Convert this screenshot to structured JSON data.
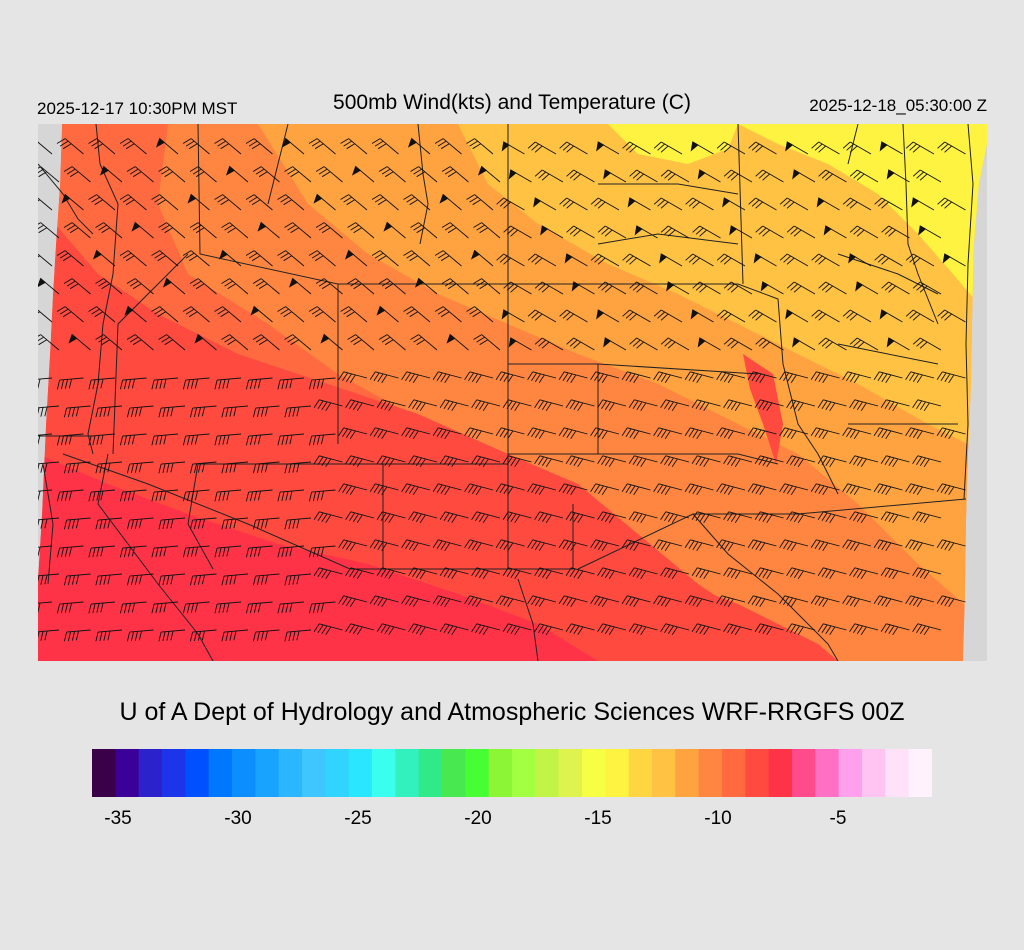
{
  "header": {
    "local_time": "2025-12-17 10:30PM MST",
    "title": "500mb Wind(kts) and Temperature (C)",
    "valid_time": "2025-12-18_05:30:00 Z"
  },
  "footer": {
    "title": "U of A Dept of Hydrology and Atmospheric Sciences WRF-RRGFS 00Z"
  },
  "colorbar": {
    "unit": "C",
    "colors": [
      "#3a0048",
      "#3b0097",
      "#2c22cc",
      "#1c35e8",
      "#0050ff",
      "#0077ff",
      "#0c8eff",
      "#17a3ff",
      "#2cb6ff",
      "#3fc5ff",
      "#31d3ff",
      "#2ae6ff",
      "#3affef",
      "#33f0bf",
      "#30e989",
      "#47e850",
      "#47fd33",
      "#8cf536",
      "#a3ff42",
      "#c2f448",
      "#def34e",
      "#f7ff44",
      "#fff342",
      "#ffd642",
      "#ffc243",
      "#ffa240",
      "#ff8640",
      "#ff6a40",
      "#ff4a40",
      "#ff3348",
      "#ff4b8c",
      "#ff70c4",
      "#ffa0ec",
      "#ffc4f2",
      "#ffe1f8",
      "#fff2fc"
    ],
    "tick_labels": [
      {
        "label": "-35",
        "value": -35
      },
      {
        "label": "-30",
        "value": -30
      },
      {
        "label": "-25",
        "value": -25
      },
      {
        "label": "-20",
        "value": -20
      },
      {
        "label": "-15",
        "value": -15
      },
      {
        "label": "-10",
        "value": -10
      },
      {
        "label": "-5",
        "value": -5
      }
    ]
  },
  "map": {
    "field": "500mb temperature",
    "wind": "barbs, west to northwest, 35-60 kt",
    "background_color": "#d6d6d6",
    "palette": {
      "yellow": "#fff342",
      "light_orange": "#ffc243",
      "orange": "#ffa240",
      "dark_orange": "#ff8640",
      "red_orange": "#ff6a40",
      "red": "#ff4a40",
      "crimson": "#ff3348"
    }
  }
}
